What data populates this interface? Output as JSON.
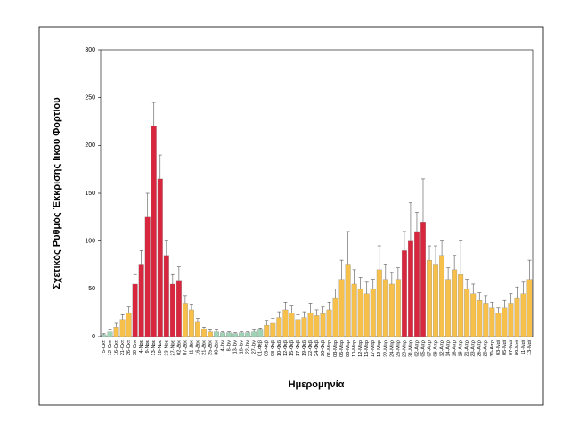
{
  "chart_data": {
    "type": "bar",
    "y_label": "Σχετικός Ρυθμός Έκκρισης Ιικού Φορτίου",
    "x_label": "Ημερομηνία",
    "categories": [
      "5-Οκτ",
      "12-Οκτ",
      "16-Οκτ",
      "21-Οκτ",
      "26-Οκτ",
      "30-Οκτ",
      "4-Νοε",
      "9-Νοε",
      "13-Νοε",
      "18-Νοε",
      "23-Νοε",
      "27-Νοε",
      "02-Δεκ",
      "07-Δεκ",
      "11-Δεκ",
      "16-Δεκ",
      "21-Δεκ",
      "25-Δεκ",
      "30-Δεκ",
      "4-Ιαν",
      "8-Ιαν",
      "13-Ιαν",
      "18-Ιαν",
      "22-Ιαν",
      "27-Ιαν",
      "01-Φεβ",
      "05-Φεβ",
      "08-Φεβ",
      "10-Φεβ",
      "12-Φεβ",
      "15-Φεβ",
      "17-Φεβ",
      "19-Φεβ",
      "22-Φεβ",
      "24-Φεβ",
      "26-Φεβ",
      "01-Μαρ",
      "03-Μαρ",
      "05-Μαρ",
      "08-Μαρ",
      "10-Μαρ",
      "12-Μαρ",
      "15-Μαρ",
      "17-Μαρ",
      "19-Μαρ",
      "22-Μαρ",
      "24-Μαρ",
      "26-Μαρ",
      "29-Μαρ",
      "31-Μαρ",
      "02-Απρ",
      "05-Απρ",
      "07-Απρ",
      "09-Απρ",
      "12-Απρ",
      "14-Απρ",
      "16-Απρ",
      "19-Απρ",
      "21-Απρ",
      "23-Απρ",
      "26-Απρ",
      "28-Απρ",
      "30-Απρ",
      "03-Μαϊ",
      "05-Μαϊ",
      "07-Μαϊ",
      "09-Μαϊ",
      "11-Μαϊ",
      "13-Μαϊ"
    ],
    "values": [
      2,
      5,
      10,
      18,
      25,
      55,
      75,
      125,
      220,
      165,
      85,
      55,
      58,
      35,
      28,
      15,
      8,
      5,
      5,
      4,
      4,
      3,
      4,
      4,
      5,
      7,
      12,
      14,
      20,
      28,
      25,
      18,
      20,
      25,
      22,
      24,
      28,
      40,
      60,
      75,
      55,
      50,
      45,
      50,
      70,
      60,
      55,
      60,
      90,
      100,
      110,
      120,
      80,
      75,
      85,
      60,
      70,
      65,
      50,
      45,
      38,
      35,
      30,
      25,
      30,
      35,
      40,
      45,
      60
    ],
    "errors": [
      1,
      2,
      4,
      5,
      6,
      10,
      15,
      25,
      25,
      25,
      15,
      10,
      15,
      8,
      6,
      4,
      2,
      2,
      2,
      1,
      1,
      1,
      1,
      1,
      2,
      2,
      5,
      5,
      6,
      8,
      7,
      5,
      6,
      10,
      6,
      7,
      8,
      10,
      20,
      35,
      15,
      12,
      12,
      10,
      25,
      15,
      12,
      12,
      20,
      40,
      20,
      45,
      15,
      20,
      15,
      12,
      15,
      35,
      10,
      10,
      8,
      8,
      6,
      5,
      8,
      10,
      12,
      12,
      20
    ],
    "colors": [
      "#9fd4b4",
      "#9fd4b4",
      "#f7c04a",
      "#f7c04a",
      "#f7c04a",
      "#d7263d",
      "#d7263d",
      "#d7263d",
      "#d7263d",
      "#d7263d",
      "#d7263d",
      "#d7263d",
      "#d7263d",
      "#f7c04a",
      "#f7c04a",
      "#f7c04a",
      "#f7c04a",
      "#f7c04a",
      "#9fd4b4",
      "#9fd4b4",
      "#9fd4b4",
      "#9fd4b4",
      "#9fd4b4",
      "#9fd4b4",
      "#9fd4b4",
      "#9fd4b4",
      "#f7c04a",
      "#f7c04a",
      "#f7c04a",
      "#f7c04a",
      "#f7c04a",
      "#f7c04a",
      "#f7c04a",
      "#f7c04a",
      "#f7c04a",
      "#f7c04a",
      "#f7c04a",
      "#f7c04a",
      "#f7c04a",
      "#f7c04a",
      "#f7c04a",
      "#f7c04a",
      "#f7c04a",
      "#f7c04a",
      "#f7c04a",
      "#f7c04a",
      "#f7c04a",
      "#f7c04a",
      "#d7263d",
      "#d7263d",
      "#d7263d",
      "#d7263d",
      "#f7c04a",
      "#f7c04a",
      "#f7c04a",
      "#f7c04a",
      "#f7c04a",
      "#f7c04a",
      "#f7c04a",
      "#f7c04a",
      "#f7c04a",
      "#f7c04a",
      "#f7c04a",
      "#f7c04a",
      "#f7c04a",
      "#f7c04a",
      "#f7c04a",
      "#f7c04a",
      "#f7c04a"
    ],
    "ylim": [
      0,
      300
    ],
    "yticks": [
      0,
      50,
      100,
      150,
      200,
      250,
      300
    ]
  }
}
